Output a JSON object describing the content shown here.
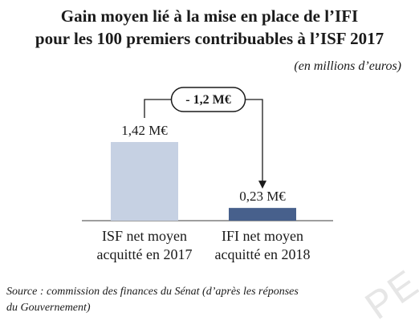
{
  "title_line1": "Gain moyen lié à la mise en place de l’IFI",
  "title_line2": "pour les 100 premiers contribuables à l’ISF 2017",
  "unit": "(en millions d’euros)",
  "source_line1": "Source : commission des finances du Sénat (d’après les réponses",
  "source_line2": "du Gouvernement)",
  "watermark": "PE",
  "chart_data": {
    "type": "bar",
    "categories": [
      [
        "ISF net moyen",
        "acquitté en 2017"
      ],
      [
        "IFI net moyen",
        "acquitté en 2018"
      ]
    ],
    "values": [
      1.42,
      0.23
    ],
    "data_labels": [
      "1,42 M€",
      "0,23 M€"
    ],
    "colors": [
      "#c6d1e3",
      "#47608c"
    ],
    "annotation": "- 1,2 M€",
    "ylim": [
      0,
      1.42
    ],
    "grid": false
  }
}
